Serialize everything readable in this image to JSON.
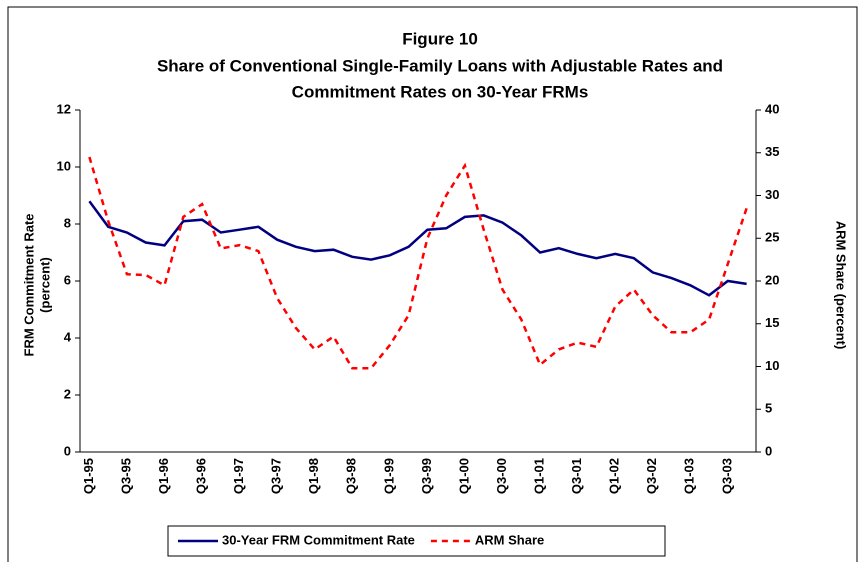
{
  "chart_data": {
    "type": "line",
    "title": [
      "Figure 10",
      "Share of Conventional Single-Family Loans with Adjustable Rates and",
      "Commitment Rates on 30-Year FRMs"
    ],
    "ylabel": [
      "FRM Commitment Rate",
      "(percent)"
    ],
    "y2label": "ARM Share (percent)",
    "categories": [
      "Q1-95",
      null,
      "Q3-95",
      null,
      "Q1-96",
      null,
      "Q3-96",
      null,
      "Q1-97",
      null,
      "Q3-97",
      null,
      "Q1-98",
      null,
      "Q3-98",
      null,
      "Q1-99",
      null,
      "Q3-99",
      null,
      "Q1-00",
      null,
      "Q3-00",
      null,
      "Q1-01",
      null,
      "Q3-01",
      null,
      "Q1-02",
      null,
      "Q3-02",
      null,
      "Q1-03",
      null,
      "Q3-03",
      null
    ],
    "series": [
      {
        "name": "30-Year FRM Commitment Rate",
        "color": "#000080",
        "dash": false,
        "axis": "y",
        "values": [
          8.8,
          7.9,
          7.7,
          7.35,
          7.25,
          8.1,
          8.15,
          7.7,
          7.8,
          7.9,
          7.45,
          7.2,
          7.05,
          7.1,
          6.85,
          6.75,
          6.9,
          7.2,
          7.8,
          7.85,
          8.25,
          8.3,
          8.05,
          7.6,
          7.0,
          7.15,
          6.95,
          6.8,
          6.95,
          6.8,
          6.3,
          6.1,
          5.85,
          5.5,
          6.0,
          5.9
        ]
      },
      {
        "name": "ARM Share",
        "color": "#ff0000",
        "dash": true,
        "axis": "y2",
        "values": [
          34.5,
          27,
          20.8,
          20.7,
          19.5,
          27.5,
          29,
          23.8,
          24.2,
          23.5,
          18,
          14.5,
          12,
          13.5,
          9.8,
          9.8,
          12.5,
          16,
          25,
          30,
          33.5,
          26,
          19,
          15.5,
          10.2,
          12,
          12.8,
          12.3,
          17,
          19,
          16,
          14,
          14,
          15.5,
          22,
          28.5
        ]
      }
    ],
    "ylim": [
      0,
      12
    ],
    "yticks": [
      0,
      2,
      4,
      6,
      8,
      10,
      12
    ],
    "y2lim": [
      0,
      40
    ],
    "y2ticks": [
      0,
      5,
      10,
      15,
      20,
      25,
      30,
      35,
      40
    ],
    "grid": false,
    "legend": "bottom"
  }
}
